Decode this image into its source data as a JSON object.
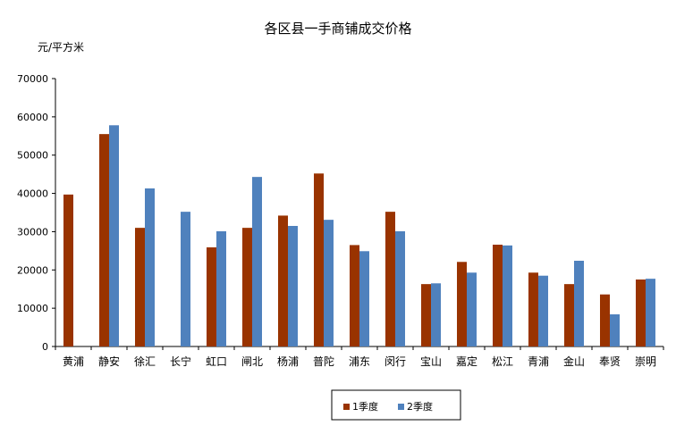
{
  "chart_data": {
    "type": "bar",
    "title": "各区县一手商铺成交价格",
    "ylabel": "元/平方米",
    "xlabel": "",
    "ylim": [
      0,
      70000
    ],
    "yticks": [
      0,
      10000,
      20000,
      30000,
      40000,
      50000,
      60000,
      70000
    ],
    "ytick_labels": [
      "0",
      "10000",
      "20000",
      "30000",
      "40000",
      "50000",
      "60000",
      "70000"
    ],
    "grid": false,
    "legend_position": "bottom",
    "categories": [
      "黄浦",
      "静安",
      "徐汇",
      "长宁",
      "虹口",
      "闸北",
      "杨浦",
      "普陀",
      "浦东",
      "闵行",
      "宝山",
      "嘉定",
      "松江",
      "青浦",
      "金山",
      "奉贤",
      "崇明"
    ],
    "series": [
      {
        "name": "1季度",
        "color": "#993300",
        "values": [
          39700,
          55500,
          31000,
          null,
          25900,
          31000,
          34200,
          45200,
          26500,
          35200,
          16300,
          22100,
          26600,
          19300,
          16300,
          13600,
          17500
        ]
      },
      {
        "name": "2季度",
        "color": "#4f81bd",
        "values": [
          null,
          57800,
          41300,
          35200,
          30100,
          44300,
          31500,
          33100,
          24900,
          30100,
          16500,
          19300,
          26400,
          18500,
          22400,
          8400,
          17700
        ]
      }
    ]
  }
}
